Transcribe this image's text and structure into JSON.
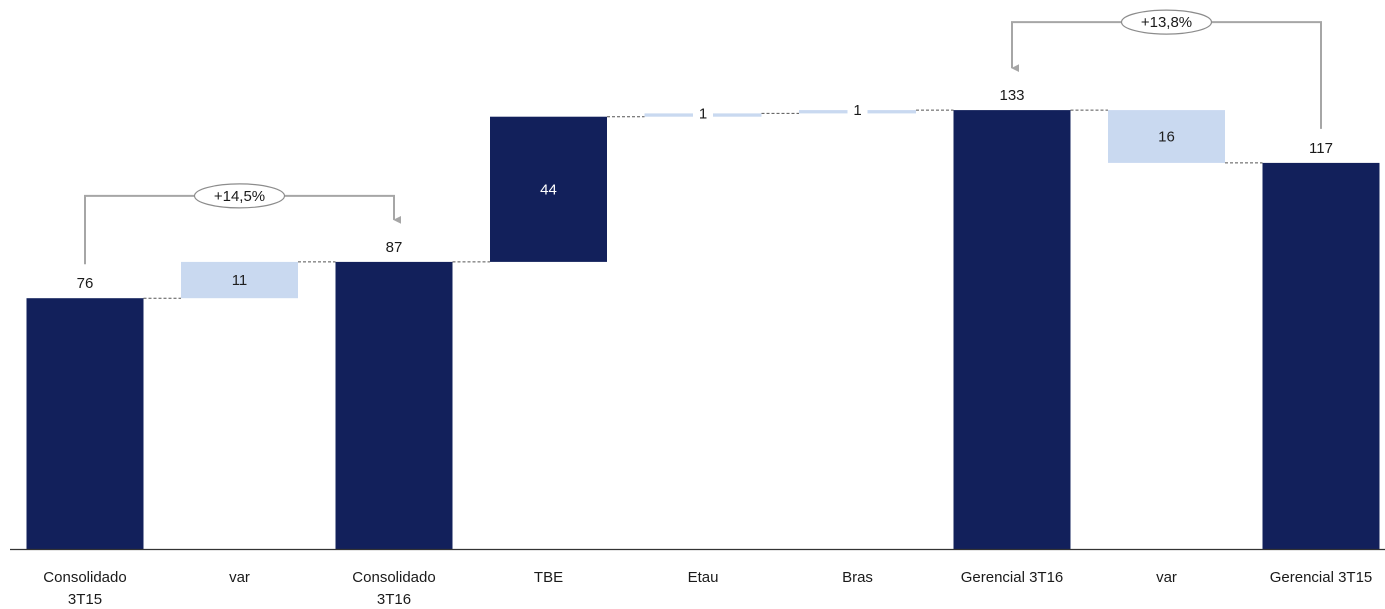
{
  "chart_data": {
    "type": "bar",
    "subtype": "waterfall",
    "title": "",
    "xlabel": "",
    "ylabel": "",
    "ylim": [
      0,
      150
    ],
    "grid": false,
    "legend": "none",
    "categories": [
      [
        "Consolidado",
        "3T15"
      ],
      [
        "var"
      ],
      [
        "Consolidado",
        "3T16"
      ],
      [
        "TBE"
      ],
      [
        "Etau"
      ],
      [
        "Bras"
      ],
      [
        "Gerencial 3T16"
      ],
      [
        "var"
      ],
      [
        "Gerencial 3T15"
      ]
    ],
    "bars": [
      {
        "kind": "total",
        "base": 0,
        "value": 76,
        "label": "76",
        "label_position": "above"
      },
      {
        "kind": "delta",
        "base": 76,
        "value": 11,
        "label": "11",
        "label_position": "inside"
      },
      {
        "kind": "total",
        "base": 0,
        "value": 87,
        "label": "87",
        "label_position": "above"
      },
      {
        "kind": "delta-strong",
        "base": 87,
        "value": 44,
        "label": "44",
        "label_position": "inside"
      },
      {
        "kind": "delta",
        "base": 131,
        "value": 1,
        "label": "1",
        "label_position": "inline"
      },
      {
        "kind": "delta",
        "base": 132,
        "value": 1,
        "label": "1",
        "label_position": "inline"
      },
      {
        "kind": "total",
        "base": 0,
        "value": 133,
        "label": "133",
        "label_position": "above"
      },
      {
        "kind": "delta",
        "base": 117,
        "value": 16,
        "label": "16",
        "label_position": "inside"
      },
      {
        "kind": "total",
        "base": 0,
        "value": 117,
        "label": "117",
        "label_position": "above"
      }
    ],
    "annotations": [
      {
        "from": 0,
        "to": 2,
        "label": "+14,5%"
      },
      {
        "from": 8,
        "to": 6,
        "label": "+13,8%"
      }
    ],
    "colors": {
      "total": "#12205b",
      "delta": "#c9d9f0",
      "delta_label": "#1f1f1f",
      "total_inside_label": "#ffffff",
      "axis": "#333333",
      "connector": "#555555",
      "annotation_line": "#a6a6a6",
      "annotation_oval": "#8c8c8c",
      "text": "#1a1a1a"
    }
  }
}
